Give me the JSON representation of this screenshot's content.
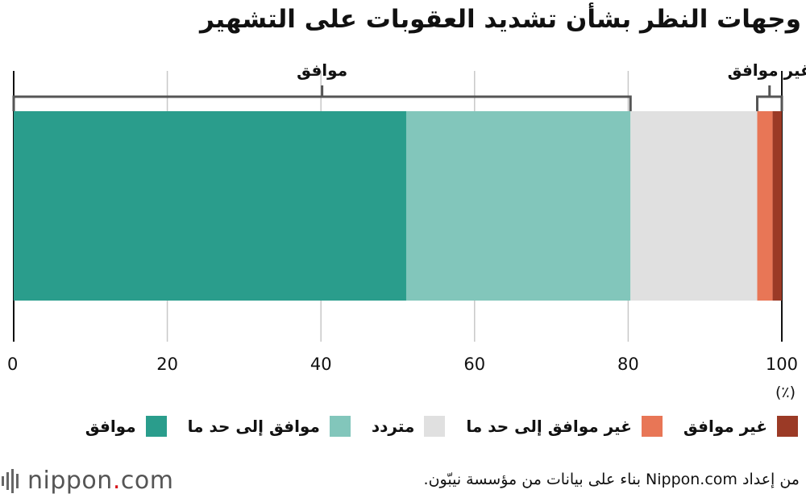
{
  "chart_data": {
    "type": "bar",
    "orientation": "horizontal",
    "stacked": true,
    "title": "وجهات النظر بشأن تشديد العقوبات على التشهير",
    "unit": "(٪)",
    "xlim": [
      0,
      100
    ],
    "x_ticks": [
      "0",
      "20",
      "40",
      "60",
      "80",
      "100"
    ],
    "grid": true,
    "legend_position": "bottom",
    "series": [
      {
        "name": "موافق",
        "value": 51.1,
        "color": "#2a9d8c"
      },
      {
        "name": "موافق إلى حد ما",
        "value": 29.2,
        "color": "#82c6bb"
      },
      {
        "name": "متردد",
        "value": 16.5,
        "color": "#e0e0e0"
      },
      {
        "name": "غير موافق إلى حد ما",
        "value": 2.0,
        "color": "#e87656"
      },
      {
        "name": "غير موافق",
        "value": 1.2,
        "color": "#9b3a26"
      }
    ],
    "brackets": [
      {
        "label": "موافق",
        "from": 0,
        "to": 80.3
      },
      {
        "label": "غير موافق",
        "from": 96.8,
        "to": 100
      }
    ]
  },
  "logo": {
    "brand": "nippon",
    "dot": ".",
    "suffix": "com"
  },
  "source_note": "من إعداد Nippon.com بناء على بيانات من مؤسسة نيبّون."
}
